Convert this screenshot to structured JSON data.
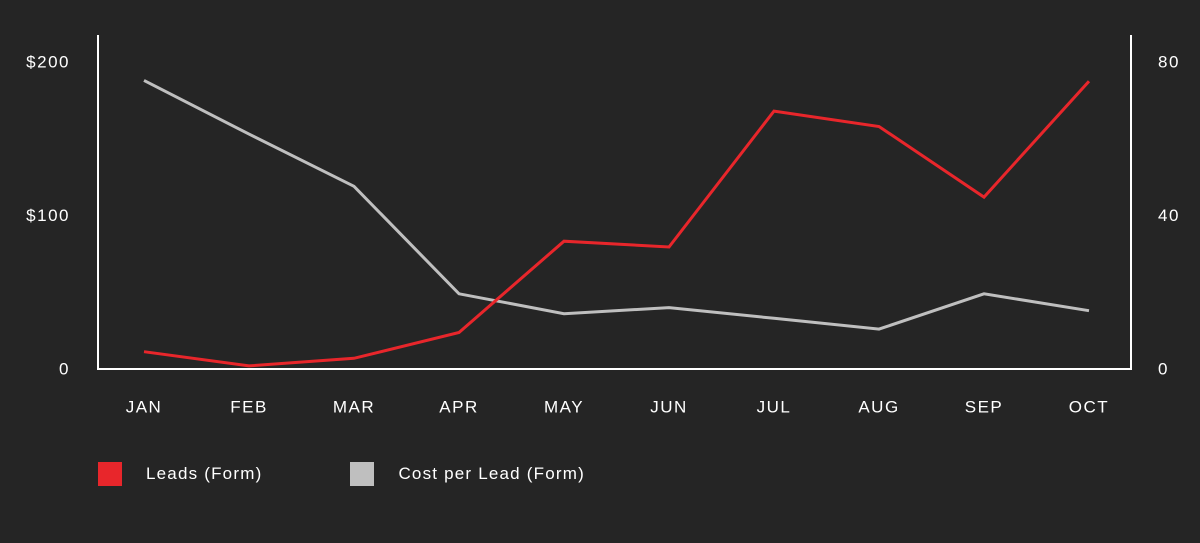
{
  "chart_data": {
    "type": "line",
    "title": "",
    "categories": [
      "JAN",
      "FEB",
      "MAR",
      "APR",
      "MAY",
      "JUN",
      "JUL",
      "AUG",
      "SEP",
      "OCT"
    ],
    "y_left": {
      "ticks": [
        0,
        100,
        200
      ],
      "tick_labels": [
        "0",
        "$100",
        "$200"
      ],
      "range": [
        0,
        200
      ]
    },
    "y_right": {
      "ticks": [
        0,
        40,
        80
      ],
      "tick_labels": [
        "0",
        "40",
        "80"
      ],
      "range": [
        0,
        80
      ]
    },
    "series": [
      {
        "name": "Leads (Form)",
        "axis": "right",
        "color": "#e8262b",
        "values": [
          4.5,
          0.8,
          2.8,
          9.5,
          33.3,
          31.8,
          67.2,
          63.2,
          44.8,
          75.0
        ]
      },
      {
        "name": "Cost per Lead (Form)",
        "axis": "left",
        "color": "#bfbfbf",
        "values": [
          188,
          153,
          119,
          49,
          36,
          40,
          33,
          26,
          49,
          38
        ]
      }
    ],
    "grid": false,
    "legend_position": "bottom-left"
  },
  "colors": {
    "background": "#252525",
    "axis": "#ffffff",
    "text": "#ffffff"
  }
}
